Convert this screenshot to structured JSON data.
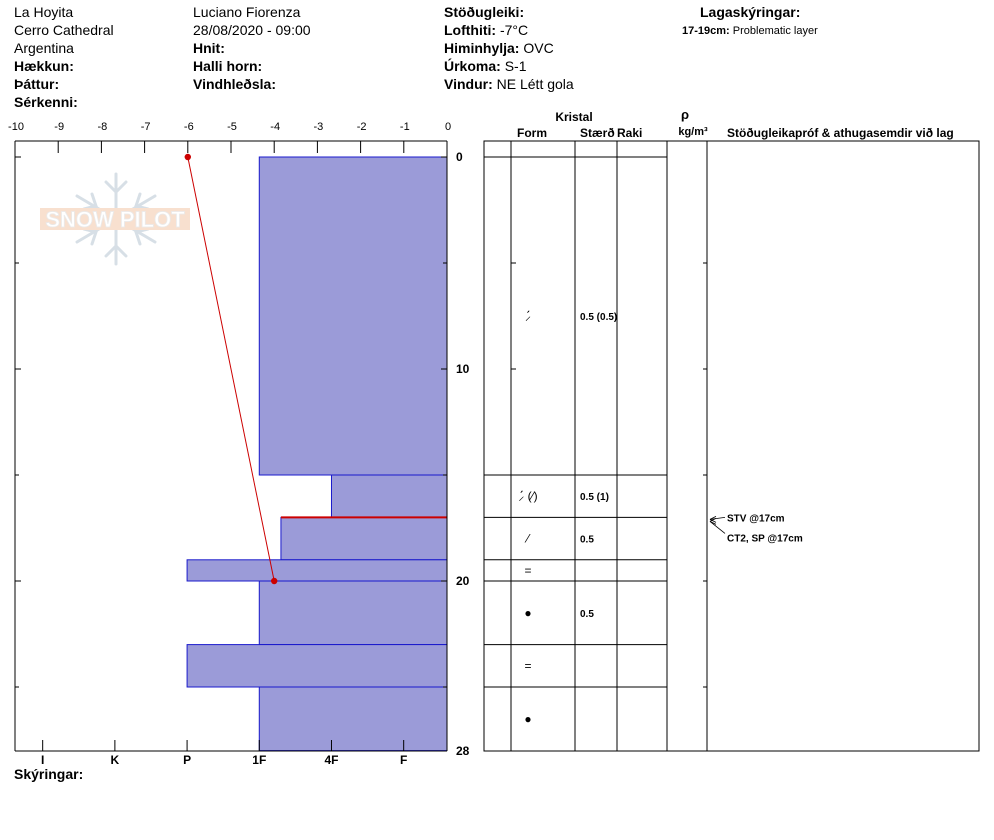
{
  "header": {
    "col1": {
      "line1": "La Hoyita",
      "line2": "Cerro Cathedral",
      "line3": "Argentina",
      "elevation_label": "Hækkun:",
      "aspect_label": "Þáttur:",
      "features_label": "Sérkenni:"
    },
    "col2": {
      "observer": "Luciano Fiorenza",
      "datetime": "28/08/2020 - 09:00",
      "coords_label": "Hnit:",
      "slope_label": "Halli horn:",
      "wind_loading_label": "Vindhleðsla:"
    },
    "col3": {
      "stability_label": "Stöðugleiki:",
      "temp_label": "Lofthiti:",
      "temp_value": "-7°C",
      "sky_label": "Himinhylja:",
      "sky_value": "OVC",
      "precip_label": "Úrkoma:",
      "precip_value": "S-1",
      "wind_label": "Vindur:",
      "wind_value": "NE Létt gola"
    },
    "col4": {
      "legend_label": "Lagaskýringar:",
      "layer_range": "17-19cm:",
      "layer_desc": "Problematic layer"
    }
  },
  "footer": {
    "notes_label": "Skýringar:"
  },
  "watermark": {
    "text": "SNOW PILOT"
  },
  "colors": {
    "hardness_fill": "#9b9bd8",
    "hardness_stroke": "#1a1acc",
    "temp_line": "#cc0000",
    "problem_line": "#cc0000"
  },
  "table_headers": {
    "crystal": "Kristal",
    "form": "Form",
    "size": "Stærð",
    "moisture": "Raki",
    "rho": "ρ",
    "density_unit": "kg/m³",
    "tests": "Stöðugleikapróf & athugasemdir við lag"
  },
  "chart_data": {
    "type": "snow-profile",
    "temperature_axis": {
      "ticks": [
        "-10",
        "-9",
        "-8",
        "-7",
        "-6",
        "-5",
        "-4",
        "-3",
        "-2",
        "-1",
        "0"
      ],
      "range": [
        -10,
        0
      ]
    },
    "hardness_axis": {
      "ticks": [
        "I",
        "K",
        "P",
        "1F",
        "4F",
        "F"
      ]
    },
    "depth_axis": {
      "ticks": [
        "0",
        "10",
        "20",
        "28"
      ],
      "range": [
        0,
        28
      ]
    },
    "hardness_layers": [
      {
        "top": 0,
        "bottom": 15,
        "hardness": 2.6
      },
      {
        "top": 15,
        "bottom": 17,
        "hardness": 1.6
      },
      {
        "top": 17,
        "bottom": 19,
        "hardness": 2.3
      },
      {
        "top": 19,
        "bottom": 20,
        "hardness": 3.6
      },
      {
        "top": 20,
        "bottom": 23,
        "hardness": 2.6
      },
      {
        "top": 23,
        "bottom": 25,
        "hardness": 3.6
      },
      {
        "top": 25,
        "bottom": 28,
        "hardness": 2.6
      }
    ],
    "problem_layer_depth": 17,
    "temperature_points": [
      {
        "depth": 0,
        "temp": -6
      },
      {
        "depth": 20,
        "temp": -4
      }
    ],
    "layer_rows": [
      {
        "top": 0,
        "bottom": 15,
        "form": "⸝́",
        "size": "0.5 (0.5)"
      },
      {
        "top": 15,
        "bottom": 17,
        "form": "⸝́ (⁄)",
        "size": "0.5 (1)"
      },
      {
        "top": 17,
        "bottom": 19,
        "form": "⁄",
        "size": "0.5"
      },
      {
        "top": 19,
        "bottom": 20,
        "form": "=",
        "size": ""
      },
      {
        "top": 20,
        "bottom": 23,
        "form": "●",
        "size": "0.5"
      },
      {
        "top": 23,
        "bottom": 25,
        "form": "=",
        "size": ""
      },
      {
        "top": 25,
        "bottom": 28,
        "form": "●",
        "size": ""
      }
    ],
    "tests": [
      {
        "depth": 17,
        "text": "STV @17cm"
      },
      {
        "depth": 17,
        "text": "CT2, SP @17cm"
      }
    ]
  }
}
